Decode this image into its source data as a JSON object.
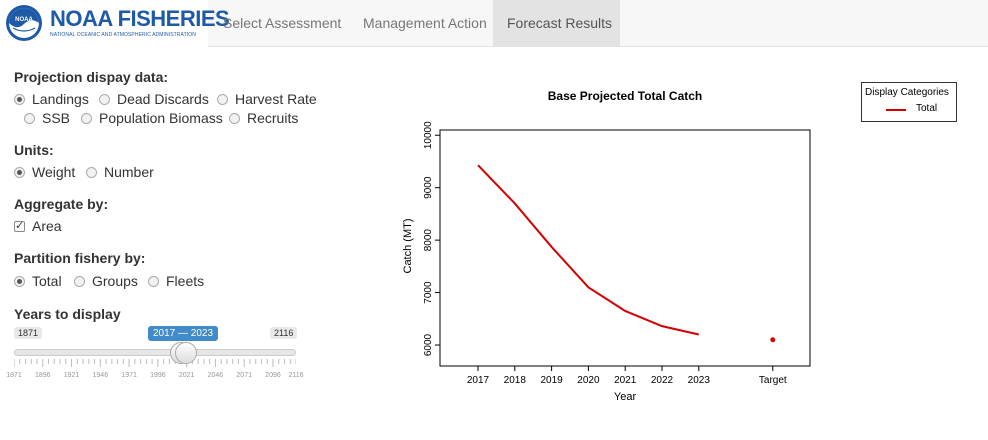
{
  "brand": {
    "title": "NOAA FISHERIES",
    "subtitle": "NATIONAL OCEANIC AND ATMOSPHERIC ADMINISTRATION",
    "logo_text": "NOAA",
    "color": "#1e5aa8"
  },
  "nav": {
    "tabs": [
      {
        "label": "Select Assessment",
        "active": false
      },
      {
        "label": "Management Action",
        "active": false
      },
      {
        "label": "Forecast Results",
        "active": true
      }
    ]
  },
  "controls": {
    "projection": {
      "label": "Projection dispay data:",
      "options": [
        {
          "label": "Landings",
          "selected": true
        },
        {
          "label": "Dead Discards",
          "selected": false
        },
        {
          "label": "Harvest Rate",
          "selected": false
        },
        {
          "label": "SSB",
          "selected": false
        },
        {
          "label": "Population Biomass",
          "selected": false
        },
        {
          "label": "Recruits",
          "selected": false
        }
      ]
    },
    "units": {
      "label": "Units:",
      "options": [
        {
          "label": "Weight",
          "selected": true
        },
        {
          "label": "Number",
          "selected": false
        }
      ]
    },
    "aggregate": {
      "label": "Aggregate by:",
      "options": [
        {
          "label": "Area",
          "checked": true
        }
      ]
    },
    "partition": {
      "label": "Partition fishery by:",
      "options": [
        {
          "label": "Total",
          "selected": true
        },
        {
          "label": "Groups",
          "selected": false
        },
        {
          "label": "Fleets",
          "selected": false
        }
      ]
    },
    "years": {
      "label": "Years to display",
      "min_label": "1871",
      "max_label": "2116",
      "min": 1871,
      "max": 2116,
      "from": 2017,
      "to": 2023,
      "value_label": "2017 — 2023",
      "tick_labels": [
        "1871",
        "1896",
        "1921",
        "1946",
        "1971",
        "1996",
        "2021",
        "2046",
        "2071",
        "2096",
        "2116"
      ]
    }
  },
  "chart_data": {
    "type": "line",
    "title": "Base Projected Total Catch",
    "xlabel": "Year",
    "ylabel": "Catch (MT)",
    "categories": [
      "2017",
      "2018",
      "2019",
      "2020",
      "2021",
      "2022",
      "2023",
      "Target"
    ],
    "series": [
      {
        "name": "Total",
        "x": [
          "2017",
          "2018",
          "2019",
          "2020",
          "2021",
          "2022",
          "2023"
        ],
        "values": [
          9430,
          8700,
          7870,
          7100,
          6650,
          6360,
          6200
        ],
        "color": "#d40000"
      }
    ],
    "target": {
      "x": "Target",
      "value": 6100,
      "color": "#d40000"
    },
    "yticks": [
      6000,
      7000,
      8000,
      9000,
      10000
    ],
    "ylim": [
      5600,
      10100
    ],
    "legend": {
      "title": "Display Categories",
      "entries": [
        "Total"
      ],
      "placement": "right"
    }
  }
}
